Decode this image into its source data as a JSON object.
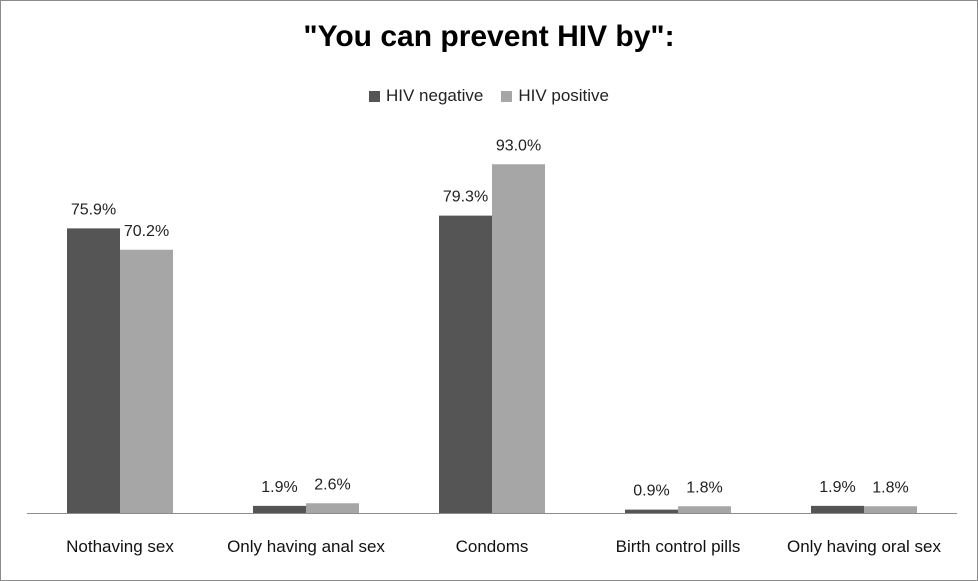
{
  "chart_data": {
    "type": "bar",
    "title": "\"You can prevent HIV by\":",
    "categories": [
      "Nothaving sex",
      "Only having anal sex",
      "Condoms",
      "Birth control pills",
      "Only having oral sex"
    ],
    "series": [
      {
        "name": "HIV negative",
        "values": [
          75.9,
          1.9,
          79.3,
          0.9,
          1.9
        ],
        "labels": [
          "75.9%",
          "1.9%",
          "79.3%",
          "0.9%",
          "1.9%"
        ],
        "color": "#555555"
      },
      {
        "name": "HIV positive",
        "values": [
          70.2,
          2.6,
          93.0,
          1.8,
          1.8
        ],
        "labels": [
          "70.2%",
          "2.6%",
          "93.0%",
          "1.8%",
          "1.8%"
        ],
        "color": "#a6a6a6"
      }
    ],
    "ylim": [
      0,
      100
    ],
    "grid": false,
    "legend": "top-center"
  }
}
